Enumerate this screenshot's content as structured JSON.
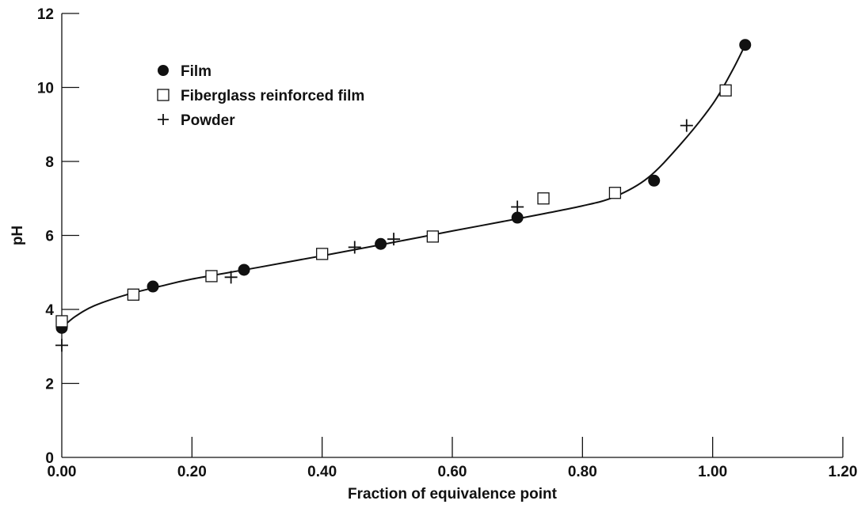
{
  "chart_data": {
    "type": "scatter",
    "title": "",
    "xlabel": "Fraction of equivalence point",
    "ylabel": "pH",
    "xlim": [
      0,
      1.2
    ],
    "ylim": [
      0,
      12
    ],
    "x_ticks": [
      "0.00",
      "0.20",
      "0.40",
      "0.60",
      "0.80",
      "1.00",
      "1.20"
    ],
    "y_ticks": [
      "0",
      "2",
      "4",
      "6",
      "8",
      "10",
      "12"
    ],
    "grid": false,
    "legend_position": "top-left",
    "series": [
      {
        "name": "Film",
        "marker": "filled-circle",
        "points": [
          {
            "x": 0.0,
            "y": 3.5
          },
          {
            "x": 0.14,
            "y": 4.62
          },
          {
            "x": 0.28,
            "y": 5.07
          },
          {
            "x": 0.49,
            "y": 5.77
          },
          {
            "x": 0.7,
            "y": 6.48
          },
          {
            "x": 0.91,
            "y": 7.48
          },
          {
            "x": 1.05,
            "y": 11.15
          }
        ]
      },
      {
        "name": "Fiberglass reinforced film",
        "marker": "open-square",
        "points": [
          {
            "x": 0.0,
            "y": 3.68
          },
          {
            "x": 0.11,
            "y": 4.4
          },
          {
            "x": 0.23,
            "y": 4.9
          },
          {
            "x": 0.4,
            "y": 5.5
          },
          {
            "x": 0.57,
            "y": 5.97
          },
          {
            "x": 0.74,
            "y": 7.0
          },
          {
            "x": 0.85,
            "y": 7.15
          },
          {
            "x": 1.02,
            "y": 9.92
          }
        ]
      },
      {
        "name": "Powder",
        "marker": "plus",
        "points": [
          {
            "x": 0.0,
            "y": 3.03
          },
          {
            "x": 0.26,
            "y": 4.87
          },
          {
            "x": 0.45,
            "y": 5.68
          },
          {
            "x": 0.51,
            "y": 5.9
          },
          {
            "x": 0.7,
            "y": 6.77
          },
          {
            "x": 0.96,
            "y": 8.97
          }
        ]
      }
    ],
    "fit_curve": {
      "points": [
        {
          "x": 0.0,
          "y": 3.5
        },
        {
          "x": 0.02,
          "y": 3.8
        },
        {
          "x": 0.05,
          "y": 4.1
        },
        {
          "x": 0.1,
          "y": 4.4
        },
        {
          "x": 0.15,
          "y": 4.62
        },
        {
          "x": 0.2,
          "y": 4.82
        },
        {
          "x": 0.3,
          "y": 5.13
        },
        {
          "x": 0.4,
          "y": 5.45
        },
        {
          "x": 0.5,
          "y": 5.78
        },
        {
          "x": 0.6,
          "y": 6.12
        },
        {
          "x": 0.7,
          "y": 6.45
        },
        {
          "x": 0.8,
          "y": 6.8
        },
        {
          "x": 0.85,
          "y": 7.05
        },
        {
          "x": 0.9,
          "y": 7.55
        },
        {
          "x": 0.95,
          "y": 8.45
        },
        {
          "x": 1.0,
          "y": 9.55
        },
        {
          "x": 1.03,
          "y": 10.45
        },
        {
          "x": 1.05,
          "y": 11.15
        }
      ]
    }
  },
  "colors": {
    "ink": "#111111",
    "background": "#ffffff"
  }
}
